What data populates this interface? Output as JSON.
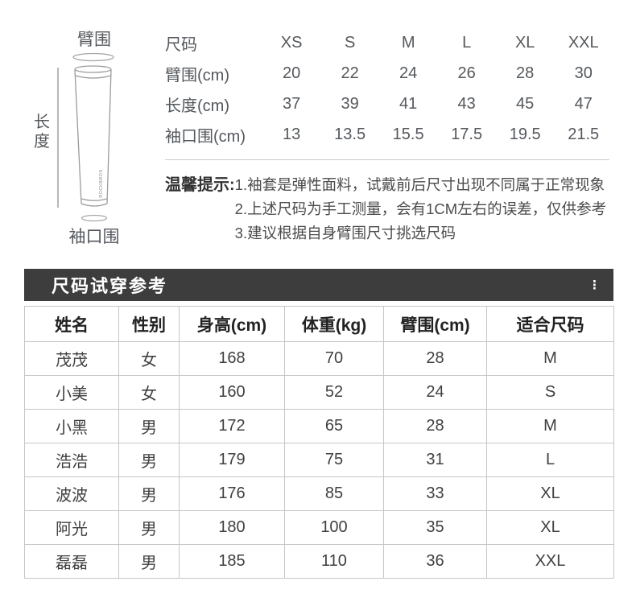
{
  "diagram": {
    "arm_label": "臂围",
    "length_label": "长度",
    "cuff_label": "袖口围",
    "brand": "ROCKBROS"
  },
  "size_table": {
    "rows": [
      {
        "label": "尺码",
        "values": [
          "XS",
          "S",
          "M",
          "L",
          "XL",
          "XXL"
        ]
      },
      {
        "label": "臂围(cm)",
        "values": [
          "20",
          "22",
          "24",
          "26",
          "28",
          "30"
        ]
      },
      {
        "label": "长度(cm)",
        "values": [
          "37",
          "39",
          "41",
          "43",
          "45",
          "47"
        ]
      },
      {
        "label": "袖口围(cm)",
        "values": [
          "13",
          "13.5",
          "15.5",
          "17.5",
          "19.5",
          "21.5"
        ]
      }
    ]
  },
  "tips": {
    "label": "温馨提示:",
    "items": [
      "1.袖套是弹性面料，试戴前后尺寸出现不同属于正常现象",
      "2.上述尺码为手工测量，会有1CM左右的误差，仅供参考",
      "3.建议根据自身臂围尺寸挑选尺码"
    ]
  },
  "fit_reference": {
    "title": "尺码试穿参考",
    "menu_icon": "⋮",
    "columns": [
      "姓名",
      "性别",
      "身高(cm)",
      "体重(kg)",
      "臂围(cm)",
      "适合尺码"
    ],
    "rows": [
      [
        "茂茂",
        "女",
        "168",
        "70",
        "28",
        "M"
      ],
      [
        "小美",
        "女",
        "160",
        "52",
        "24",
        "S"
      ],
      [
        "小黑",
        "男",
        "172",
        "65",
        "28",
        "M"
      ],
      [
        "浩浩",
        "男",
        "179",
        "75",
        "31",
        "L"
      ],
      [
        "波波",
        "男",
        "176",
        "85",
        "33",
        "XL"
      ],
      [
        "阿光",
        "男",
        "180",
        "100",
        "35",
        "XL"
      ],
      [
        "磊磊",
        "男",
        "185",
        "110",
        "36",
        "XXL"
      ]
    ]
  },
  "colors": {
    "header_bar": "#3d3d3d",
    "header_bar_text": "#ffffff",
    "table_border": "#c6c6c6",
    "spec_text": "#54585c",
    "body_text": "#404040",
    "diagram_line": "#a8a8a8"
  }
}
